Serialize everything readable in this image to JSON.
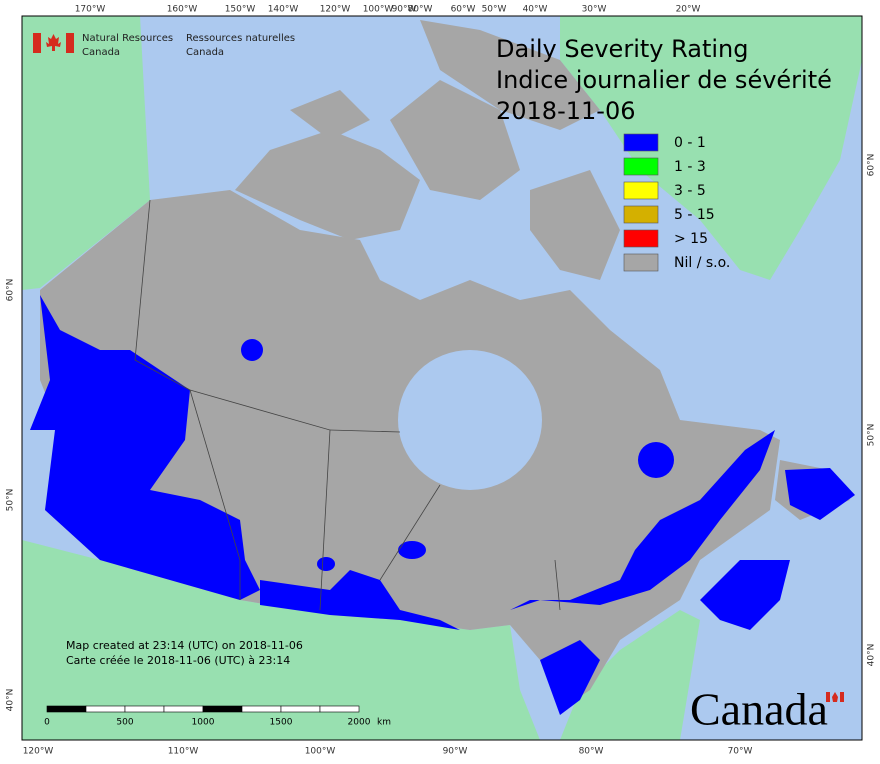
{
  "agency": {
    "en": [
      "Natural Resources",
      "Canada"
    ],
    "fr": [
      "Ressources naturelles",
      "Canada"
    ]
  },
  "title": [
    "Daily Severity Rating",
    "Indice journalier de sévérité",
    "2018-11-06"
  ],
  "legend": [
    {
      "label": "0 - 1",
      "color": "#0000ff"
    },
    {
      "label": "1 - 3",
      "color": "#00ff00"
    },
    {
      "label": "3 - 5",
      "color": "#ffff00"
    },
    {
      "label": "5 - 15",
      "color": "#d4b000"
    },
    {
      "label": "> 15",
      "color": "#ff0000"
    },
    {
      "label": "Nil / s.o.",
      "color": "#a6a6a6"
    }
  ],
  "top_longitudes": [
    "170°W",
    "160°W",
    "150°W",
    "140°W",
    "120°W",
    "100°W",
    "90°W",
    "80°W",
    "60°W",
    "50°W",
    "40°W",
    "30°W",
    "20°W"
  ],
  "bottom_longitudes": [
    "120°W",
    "110°W",
    "100°W",
    "90°W",
    "80°W",
    "70°W"
  ],
  "left_latitudes": [
    "60°N",
    "50°N",
    "40°N"
  ],
  "right_latitudes": [
    "60°N",
    "50°N",
    "40°N"
  ],
  "notes": [
    "Map created at 23:14 (UTC) on 2018-11-06",
    "Carte créée le 2018-11-06 (UTC) à 23:14"
  ],
  "scale_bar": {
    "ticks": [
      "0",
      "500",
      "1000",
      "1500",
      "2000"
    ],
    "unit": "km"
  },
  "wordmark": "Canada"
}
